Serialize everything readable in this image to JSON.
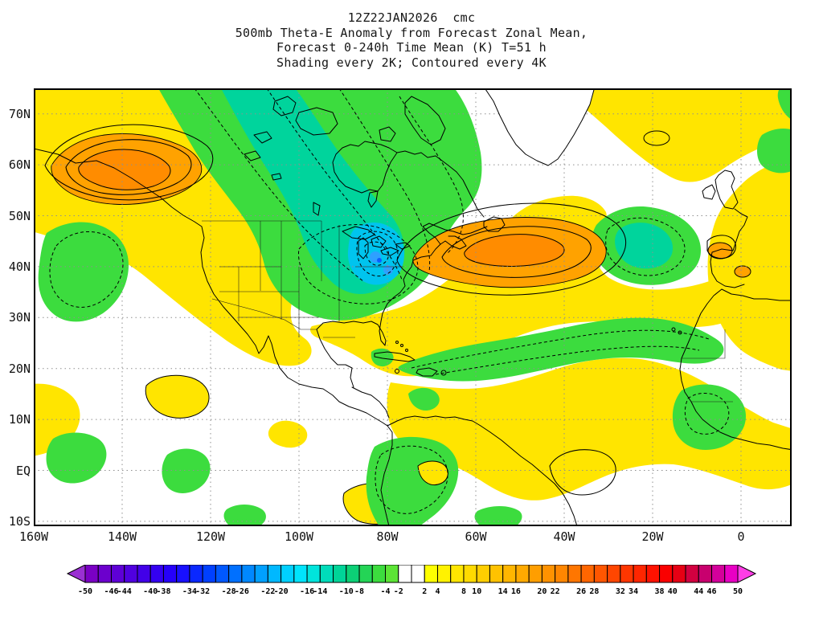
{
  "title": {
    "line1": "12Z22JAN2026  cmc",
    "line2": "500mb Theta-E Anomaly from Forecast Zonal Mean,",
    "line3": "Forecast 0-240h Time Mean (K) T=51 h",
    "line4": "Shading every 2K; Contoured every 4K"
  },
  "axes": {
    "y_ticks": [
      "70N",
      "60N",
      "50N",
      "40N",
      "30N",
      "20N",
      "10N",
      "EQ",
      "10S"
    ],
    "x_ticks": [
      "160W",
      "140W",
      "120W",
      "100W",
      "80W",
      "60W",
      "40W",
      "20W",
      "0"
    ]
  },
  "colorbar": {
    "tick_values": [
      -50,
      -46,
      -44,
      -40,
      -38,
      -34,
      -32,
      -28,
      -26,
      -22,
      -20,
      -16,
      -14,
      -10,
      -8,
      -4,
      -2,
      2,
      4,
      8,
      10,
      14,
      16,
      20,
      22,
      26,
      28,
      32,
      34,
      38,
      40,
      44,
      46,
      50
    ],
    "arrow_left_color": "#9a30d2",
    "arrow_right_color": "#ff3ce6",
    "segment_colors": [
      "#7a00c4",
      "#6c00cd",
      "#5e00d6",
      "#5000df",
      "#4200e8",
      "#3400f1",
      "#2600fa",
      "#1810ff",
      "#0a28ff",
      "#0040ff",
      "#0058ff",
      "#0070ff",
      "#0088ff",
      "#00a0ff",
      "#00b8ff",
      "#00d0ff",
      "#00e4fc",
      "#00e4dc",
      "#00dcba",
      "#00d498",
      "#0cd076",
      "#24d456",
      "#3cdc3e",
      "#5ce436",
      "#ffffff",
      "#ffffff",
      "#ffff00",
      "#fff200",
      "#ffe600",
      "#ffda00",
      "#ffce00",
      "#ffc200",
      "#ffb600",
      "#ffaa00",
      "#ff9e00",
      "#ff9200",
      "#ff8600",
      "#ff7600",
      "#ff6600",
      "#ff5600",
      "#ff4600",
      "#ff3600",
      "#ff2600",
      "#ff1200",
      "#fa0000",
      "#e60014",
      "#d20040",
      "#c8006e",
      "#d4009b",
      "#e800c4"
    ]
  },
  "palette": {
    "yellow": "#ffe500",
    "green": "#3cdc3e",
    "teal": "#00d49c",
    "cyan": "#00c4ee",
    "lightblue": "#2ea0ff",
    "blue": "#0c5cff",
    "orange": "#ffa200",
    "darkorange": "#ff8c00",
    "white": "#ffffff"
  },
  "chart_data": {
    "type": "heatmap",
    "subtype": "filled-contour anomaly map on lat/lon grid",
    "title": "500mb Theta-E Anomaly from Forecast Zonal Mean, Forecast 0-240h Time Mean (K) T=51 h",
    "run": "12Z22JAN2026",
    "model": "cmc",
    "units": "K",
    "shading_interval_K": 2,
    "contour_interval_K": 4,
    "lat_range": [
      "10S",
      "75N"
    ],
    "lon_range": [
      "160W",
      "10E"
    ],
    "x_tick_labels": [
      "160W",
      "140W",
      "120W",
      "100W",
      "80W",
      "60W",
      "40W",
      "20W",
      "0"
    ],
    "y_tick_labels": [
      "70N",
      "60N",
      "50N",
      "40N",
      "30N",
      "20N",
      "10N",
      "EQ",
      "10S"
    ],
    "colorbar_levels": [
      -50,
      -46,
      -44,
      -40,
      -38,
      -34,
      -32,
      -28,
      -26,
      -22,
      -20,
      -16,
      -14,
      -10,
      -8,
      -4,
      -2,
      2,
      4,
      8,
      10,
      14,
      16,
      20,
      22,
      26,
      28,
      32,
      34,
      38,
      40,
      44,
      46,
      50
    ],
    "features": [
      {
        "region": "Alaska / Yukon (~55N 145W)",
        "sign": "positive",
        "peak_K": 16
      },
      {
        "region": "western North Atlantic (~42N 55W)",
        "sign": "positive",
        "peak_K": 18
      },
      {
        "region": "central Canada through Great Lakes / Ohio Valley (70N-38N, 110W-80W)",
        "sign": "negative",
        "peak_K": -20
      },
      {
        "region": "eastern Pacific off west coast (~38N 150W)",
        "sign": "negative",
        "peak_K": -8
      },
      {
        "region": "central North Atlantic (~46N 26W)",
        "sign": "negative",
        "peak_K": -8
      },
      {
        "region": "tropical Atlantic band (18-25N, 60W-20W)",
        "sign": "negative",
        "peak_K": -6
      },
      {
        "region": "western Europe / Iberia (~42N 5W)",
        "sign": "positive",
        "peak_K": 14
      },
      {
        "region": "tropics: Caribbean, Gulf of Guinea, West Africa (0-15N)",
        "sign": "positive",
        "peak_K": 6
      },
      {
        "region": "northern South America (~5N 72W)",
        "sign": "negative",
        "peak_K": -6
      }
    ],
    "legend_position": "bottom",
    "grid": "dotted every 10 deg lat / 20 deg lon"
  }
}
